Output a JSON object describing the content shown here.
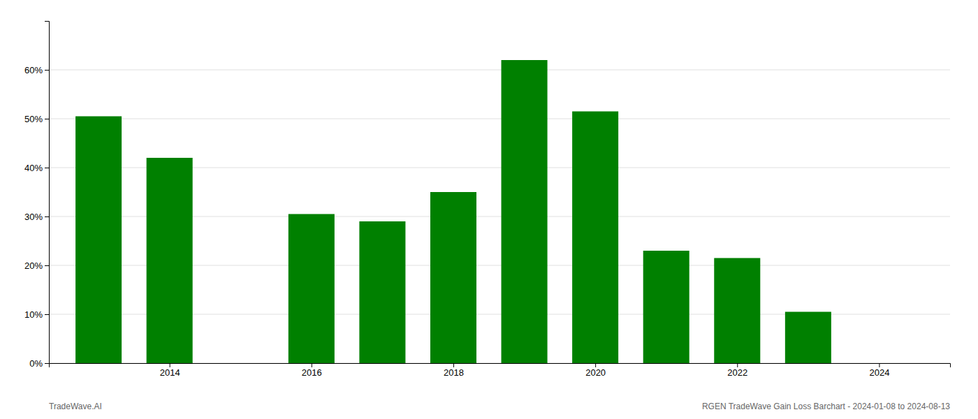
{
  "chart_data": {
    "type": "bar",
    "x": [
      2013,
      2014,
      2016,
      2017,
      2018,
      2019,
      2020,
      2021,
      2022,
      2023
    ],
    "values": [
      0.505,
      0.42,
      0.305,
      0.29,
      0.35,
      0.62,
      0.515,
      0.23,
      0.215,
      0.105
    ],
    "color": "#008000",
    "xlim": [
      2012.3,
      2025.0
    ],
    "xticks": [
      2014,
      2016,
      2018,
      2020,
      2022,
      2024
    ],
    "ylim": [
      0.0,
      0.7
    ],
    "yticks": [
      {
        "value": 0.0,
        "label": "0%"
      },
      {
        "value": 0.1,
        "label": "10%"
      },
      {
        "value": 0.2,
        "label": "20%"
      },
      {
        "value": 0.3,
        "label": "30%"
      },
      {
        "value": 0.4,
        "label": "40%"
      },
      {
        "value": 0.5,
        "label": "50%"
      },
      {
        "value": 0.6,
        "label": "60%"
      }
    ],
    "grid": true,
    "annotations": [
      "TradeWave.AI",
      "RGEN TradeWave Gain Loss Barchart - 2024-01-08 to 2024-08-13"
    ]
  }
}
